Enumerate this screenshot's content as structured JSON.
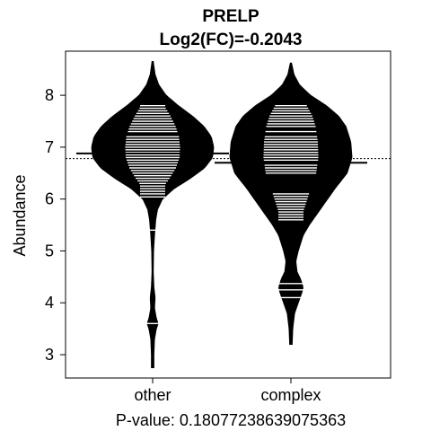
{
  "chart_data": {
    "type": "beanplot",
    "title": "PRELP",
    "subtitle": "Log2(FC)=-0.2043",
    "ylabel": "Abundance",
    "xlabel": "P-value: 0.18077238639075363",
    "ylim": [
      2.55,
      8.85
    ],
    "yticks": [
      "3",
      "4",
      "5",
      "6",
      "7",
      "8"
    ],
    "overall_mean": 6.78,
    "grid": false,
    "groups": [
      {
        "label": "other",
        "mean": 6.88,
        "min": 2.75,
        "max": 8.65,
        "density": [
          [
            2.75,
            0.02
          ],
          [
            3.0,
            0.02
          ],
          [
            3.3,
            0.03
          ],
          [
            3.5,
            0.06
          ],
          [
            3.6,
            0.09
          ],
          [
            3.7,
            0.06
          ],
          [
            3.9,
            0.03
          ],
          [
            4.1,
            0.04
          ],
          [
            4.3,
            0.02
          ],
          [
            4.6,
            0.01
          ],
          [
            5.0,
            0.015
          ],
          [
            5.3,
            0.03
          ],
          [
            5.6,
            0.05
          ],
          [
            5.8,
            0.08
          ],
          [
            6.0,
            0.16
          ],
          [
            6.2,
            0.35
          ],
          [
            6.4,
            0.62
          ],
          [
            6.6,
            0.85
          ],
          [
            6.8,
            0.98
          ],
          [
            7.0,
            1.0
          ],
          [
            7.2,
            0.96
          ],
          [
            7.4,
            0.84
          ],
          [
            7.6,
            0.65
          ],
          [
            7.8,
            0.42
          ],
          [
            8.0,
            0.22
          ],
          [
            8.2,
            0.1
          ],
          [
            8.4,
            0.04
          ],
          [
            8.65,
            0.01
          ]
        ],
        "values": [
          3.6,
          5.4,
          6.04,
          6.1,
          6.15,
          6.2,
          6.25,
          6.3,
          6.35,
          6.4,
          6.45,
          6.5,
          6.55,
          6.6,
          6.65,
          6.7,
          6.75,
          6.8,
          6.85,
          6.9,
          6.95,
          7.0,
          7.05,
          7.1,
          7.15,
          7.2,
          7.3,
          7.35,
          7.4,
          7.45,
          7.5,
          7.55,
          7.6,
          7.65,
          7.7,
          7.75,
          7.8
        ]
      },
      {
        "label": "complex",
        "mean": 6.7,
        "min": 3.2,
        "max": 8.62,
        "density": [
          [
            3.2,
            0.02
          ],
          [
            3.5,
            0.03
          ],
          [
            3.8,
            0.06
          ],
          [
            4.0,
            0.12
          ],
          [
            4.2,
            0.18
          ],
          [
            4.3,
            0.2
          ],
          [
            4.45,
            0.16
          ],
          [
            4.6,
            0.1
          ],
          [
            4.8,
            0.08
          ],
          [
            5.0,
            0.12
          ],
          [
            5.3,
            0.2
          ],
          [
            5.5,
            0.3
          ],
          [
            5.8,
            0.48
          ],
          [
            6.0,
            0.6
          ],
          [
            6.2,
            0.72
          ],
          [
            6.5,
            0.92
          ],
          [
            6.8,
            1.0
          ],
          [
            7.1,
            0.98
          ],
          [
            7.4,
            0.9
          ],
          [
            7.6,
            0.78
          ],
          [
            7.8,
            0.58
          ],
          [
            8.0,
            0.32
          ],
          [
            8.2,
            0.14
          ],
          [
            8.4,
            0.05
          ],
          [
            8.62,
            0.01
          ]
        ],
        "values": [
          4.1,
          4.25,
          4.37,
          5.6,
          5.65,
          5.7,
          5.75,
          5.8,
          5.85,
          5.9,
          5.95,
          6.0,
          6.05,
          6.1,
          6.5,
          6.55,
          6.6,
          6.65,
          6.7,
          6.75,
          6.8,
          6.85,
          6.9,
          6.95,
          7.0,
          7.05,
          7.1,
          7.15,
          7.2,
          7.3,
          7.4,
          7.45,
          7.5,
          7.55,
          7.6,
          7.65,
          7.7,
          7.75,
          7.8
        ]
      }
    ]
  }
}
